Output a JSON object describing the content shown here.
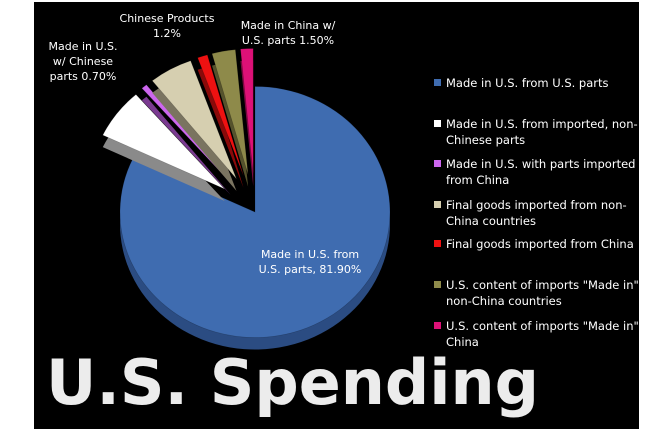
{
  "chart_data": {
    "type": "pie",
    "title": "U.S. Spending",
    "slices": [
      {
        "legend": "Made in U.S. from U.S. parts",
        "value": 81.9,
        "color": "#3f6cb0",
        "side": "#2b4c82",
        "label": [
          "Made in U.S. from",
          "U.S. parts, 81.90%"
        ]
      },
      {
        "legend": "Made in U.S. from imported, non-Chinese parts",
        "value": 6.5,
        "color": "#ffffff",
        "side": "#8a8a8a",
        "label": []
      },
      {
        "legend": "Made in U.S. with parts imported from China",
        "value": 0.7,
        "color": "#cc66ee",
        "side": "#7a3a90",
        "label": [
          "Made in U.S.",
          "w/ Chinese",
          "parts 0.70%"
        ]
      },
      {
        "legend": "Final goods imported from non-China countries",
        "value": 5.2,
        "color": "#d6cfb0",
        "side": "#7a7460",
        "label": []
      },
      {
        "legend": "Final goods imported from China",
        "value": 1.2,
        "color": "#ee1111",
        "side": "#8a0a0a",
        "label": [
          "Chinese Products",
          "1.2%"
        ]
      },
      {
        "legend": "U.S. content of imports \"Made in\" non-China countries",
        "value": 2.8,
        "color": "#8e8a4a",
        "side": "#55522c",
        "label": []
      },
      {
        "legend": "U.S. content of imports \"Made in\" China",
        "value": 1.5,
        "color": "#dd1177",
        "side": "#800a44",
        "label": [
          "Made in China w/",
          "U.S. parts 1.50%"
        ]
      }
    ],
    "legend_position": "right",
    "unit": "%"
  }
}
